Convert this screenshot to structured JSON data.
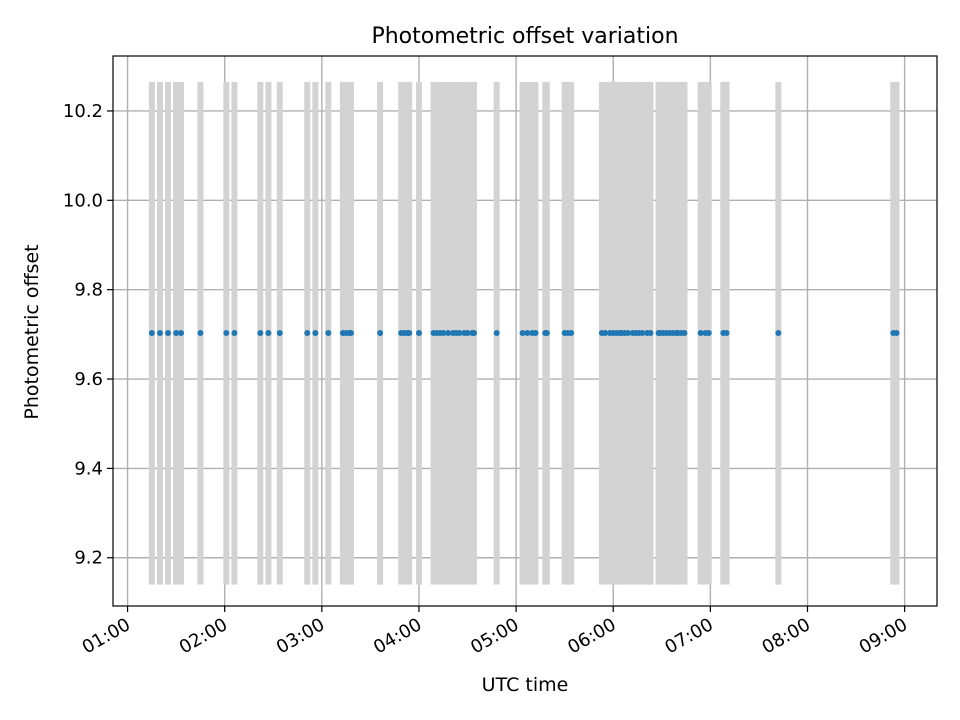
{
  "chart_data": {
    "type": "scatter",
    "title": "Photometric offset variation",
    "xlabel": "UTC time",
    "ylabel": "Photometric offset",
    "xlim": [
      "00:51",
      "09:20"
    ],
    "ylim": [
      9.092,
      10.323
    ],
    "x_ticks": [
      "01:00",
      "02:00",
      "03:00",
      "04:00",
      "05:00",
      "06:00",
      "07:00",
      "08:00",
      "09:00"
    ],
    "y_ticks": [
      "9.2",
      "9.4",
      "9.6",
      "9.8",
      "10.0",
      "10.2"
    ],
    "grid": true,
    "point_color": "#1f77b4",
    "band_color": "#d3d3d3",
    "band_range": [
      9.14,
      10.265
    ],
    "series": [
      {
        "y": 9.703,
        "x": [
          "01:15",
          "01:20",
          "01:25",
          "01:30",
          "01:33",
          "01:45",
          "02:01",
          "02:06",
          "02:22",
          "02:27",
          "02:34",
          "02:51",
          "02:56",
          "03:04",
          "03:13",
          "03:15",
          "03:17",
          "03:18",
          "03:36",
          "03:49",
          "03:51",
          "03:53",
          "03:54",
          "04:00",
          "04:09",
          "04:11",
          "04:13",
          "04:15",
          "04:18",
          "04:21",
          "04:23",
          "04:25",
          "04:28",
          "04:30",
          "04:33",
          "04:34",
          "04:48",
          "05:04",
          "05:07",
          "05:10",
          "05:12",
          "05:18",
          "05:19",
          "05:30",
          "05:32",
          "05:34",
          "05:53",
          "05:55",
          "05:58",
          "06:00",
          "06:02",
          "06:04",
          "06:05",
          "06:07",
          "06:09",
          "06:12",
          "06:14",
          "06:16",
          "06:18",
          "06:21",
          "06:23",
          "06:28",
          "06:29",
          "06:31",
          "06:33",
          "06:35",
          "06:37",
          "06:39",
          "06:40",
          "06:42",
          "06:44",
          "06:54",
          "06:57",
          "06:59",
          "07:08",
          "07:10",
          "07:42",
          "08:53",
          "08:55"
        ],
        "bands": [
          "01:15",
          "01:20",
          "01:25",
          "01:30",
          "01:33",
          "01:45",
          "02:01",
          "02:06",
          "02:22",
          "02:27",
          "02:34",
          "02:51",
          "02:56",
          "03:04",
          "03:13",
          "03:15",
          "03:17",
          "03:18",
          "03:36",
          "03:49",
          "03:51",
          "03:53",
          "03:54",
          "04:00",
          "04:09",
          "04:11",
          "04:13",
          "04:15",
          "04:18",
          "04:21",
          "04:23",
          "04:25",
          "04:28",
          "04:30",
          "04:33",
          "04:34",
          "04:48",
          "05:04",
          "05:07",
          "05:10",
          "05:12",
          "05:18",
          "05:19",
          "05:30",
          "05:32",
          "05:34",
          "05:53",
          "05:55",
          "05:58",
          "06:00",
          "06:02",
          "06:04",
          "06:05",
          "06:07",
          "06:09",
          "06:12",
          "06:14",
          "06:16",
          "06:18",
          "06:21",
          "06:23",
          "06:28",
          "06:29",
          "06:31",
          "06:33",
          "06:35",
          "06:37",
          "06:39",
          "06:40",
          "06:42",
          "06:44",
          "06:54",
          "06:57",
          "06:59",
          "07:08",
          "07:10",
          "07:42",
          "08:53",
          "08:55"
        ]
      }
    ]
  }
}
